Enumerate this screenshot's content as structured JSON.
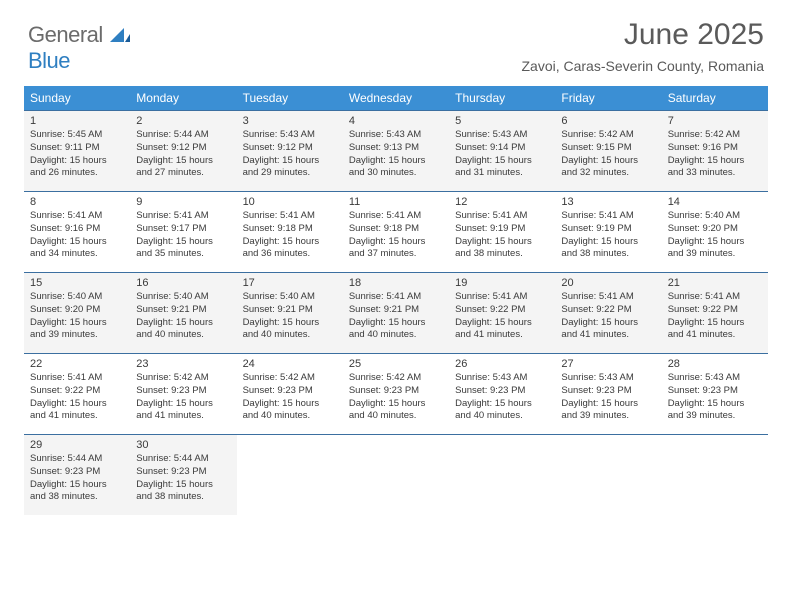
{
  "logo": {
    "text1": "General",
    "text2": "Blue"
  },
  "header": {
    "month_title": "June 2025",
    "location": "Zavoi, Caras-Severin County, Romania"
  },
  "colors": {
    "header_bg": "#3b8fd4",
    "header_fg": "#ffffff",
    "week_border": "#3b6fa0",
    "alt_row_bg": "#f4f4f4",
    "text": "#3a3a3a",
    "title": "#5a5a5a",
    "logo_gray": "#6b6b6b",
    "logo_blue": "#2f7fc1"
  },
  "weekdays": [
    "Sunday",
    "Monday",
    "Tuesday",
    "Wednesday",
    "Thursday",
    "Friday",
    "Saturday"
  ],
  "weeks": [
    {
      "alt": true,
      "days": [
        {
          "n": "1",
          "sr": "Sunrise: 5:45 AM",
          "ss": "Sunset: 9:11 PM",
          "d1": "Daylight: 15 hours",
          "d2": "and 26 minutes."
        },
        {
          "n": "2",
          "sr": "Sunrise: 5:44 AM",
          "ss": "Sunset: 9:12 PM",
          "d1": "Daylight: 15 hours",
          "d2": "and 27 minutes."
        },
        {
          "n": "3",
          "sr": "Sunrise: 5:43 AM",
          "ss": "Sunset: 9:12 PM",
          "d1": "Daylight: 15 hours",
          "d2": "and 29 minutes."
        },
        {
          "n": "4",
          "sr": "Sunrise: 5:43 AM",
          "ss": "Sunset: 9:13 PM",
          "d1": "Daylight: 15 hours",
          "d2": "and 30 minutes."
        },
        {
          "n": "5",
          "sr": "Sunrise: 5:43 AM",
          "ss": "Sunset: 9:14 PM",
          "d1": "Daylight: 15 hours",
          "d2": "and 31 minutes."
        },
        {
          "n": "6",
          "sr": "Sunrise: 5:42 AM",
          "ss": "Sunset: 9:15 PM",
          "d1": "Daylight: 15 hours",
          "d2": "and 32 minutes."
        },
        {
          "n": "7",
          "sr": "Sunrise: 5:42 AM",
          "ss": "Sunset: 9:16 PM",
          "d1": "Daylight: 15 hours",
          "d2": "and 33 minutes."
        }
      ]
    },
    {
      "alt": false,
      "days": [
        {
          "n": "8",
          "sr": "Sunrise: 5:41 AM",
          "ss": "Sunset: 9:16 PM",
          "d1": "Daylight: 15 hours",
          "d2": "and 34 minutes."
        },
        {
          "n": "9",
          "sr": "Sunrise: 5:41 AM",
          "ss": "Sunset: 9:17 PM",
          "d1": "Daylight: 15 hours",
          "d2": "and 35 minutes."
        },
        {
          "n": "10",
          "sr": "Sunrise: 5:41 AM",
          "ss": "Sunset: 9:18 PM",
          "d1": "Daylight: 15 hours",
          "d2": "and 36 minutes."
        },
        {
          "n": "11",
          "sr": "Sunrise: 5:41 AM",
          "ss": "Sunset: 9:18 PM",
          "d1": "Daylight: 15 hours",
          "d2": "and 37 minutes."
        },
        {
          "n": "12",
          "sr": "Sunrise: 5:41 AM",
          "ss": "Sunset: 9:19 PM",
          "d1": "Daylight: 15 hours",
          "d2": "and 38 minutes."
        },
        {
          "n": "13",
          "sr": "Sunrise: 5:41 AM",
          "ss": "Sunset: 9:19 PM",
          "d1": "Daylight: 15 hours",
          "d2": "and 38 minutes."
        },
        {
          "n": "14",
          "sr": "Sunrise: 5:40 AM",
          "ss": "Sunset: 9:20 PM",
          "d1": "Daylight: 15 hours",
          "d2": "and 39 minutes."
        }
      ]
    },
    {
      "alt": true,
      "days": [
        {
          "n": "15",
          "sr": "Sunrise: 5:40 AM",
          "ss": "Sunset: 9:20 PM",
          "d1": "Daylight: 15 hours",
          "d2": "and 39 minutes."
        },
        {
          "n": "16",
          "sr": "Sunrise: 5:40 AM",
          "ss": "Sunset: 9:21 PM",
          "d1": "Daylight: 15 hours",
          "d2": "and 40 minutes."
        },
        {
          "n": "17",
          "sr": "Sunrise: 5:40 AM",
          "ss": "Sunset: 9:21 PM",
          "d1": "Daylight: 15 hours",
          "d2": "and 40 minutes."
        },
        {
          "n": "18",
          "sr": "Sunrise: 5:41 AM",
          "ss": "Sunset: 9:21 PM",
          "d1": "Daylight: 15 hours",
          "d2": "and 40 minutes."
        },
        {
          "n": "19",
          "sr": "Sunrise: 5:41 AM",
          "ss": "Sunset: 9:22 PM",
          "d1": "Daylight: 15 hours",
          "d2": "and 41 minutes."
        },
        {
          "n": "20",
          "sr": "Sunrise: 5:41 AM",
          "ss": "Sunset: 9:22 PM",
          "d1": "Daylight: 15 hours",
          "d2": "and 41 minutes."
        },
        {
          "n": "21",
          "sr": "Sunrise: 5:41 AM",
          "ss": "Sunset: 9:22 PM",
          "d1": "Daylight: 15 hours",
          "d2": "and 41 minutes."
        }
      ]
    },
    {
      "alt": false,
      "days": [
        {
          "n": "22",
          "sr": "Sunrise: 5:41 AM",
          "ss": "Sunset: 9:22 PM",
          "d1": "Daylight: 15 hours",
          "d2": "and 41 minutes."
        },
        {
          "n": "23",
          "sr": "Sunrise: 5:42 AM",
          "ss": "Sunset: 9:23 PM",
          "d1": "Daylight: 15 hours",
          "d2": "and 41 minutes."
        },
        {
          "n": "24",
          "sr": "Sunrise: 5:42 AM",
          "ss": "Sunset: 9:23 PM",
          "d1": "Daylight: 15 hours",
          "d2": "and 40 minutes."
        },
        {
          "n": "25",
          "sr": "Sunrise: 5:42 AM",
          "ss": "Sunset: 9:23 PM",
          "d1": "Daylight: 15 hours",
          "d2": "and 40 minutes."
        },
        {
          "n": "26",
          "sr": "Sunrise: 5:43 AM",
          "ss": "Sunset: 9:23 PM",
          "d1": "Daylight: 15 hours",
          "d2": "and 40 minutes."
        },
        {
          "n": "27",
          "sr": "Sunrise: 5:43 AM",
          "ss": "Sunset: 9:23 PM",
          "d1": "Daylight: 15 hours",
          "d2": "and 39 minutes."
        },
        {
          "n": "28",
          "sr": "Sunrise: 5:43 AM",
          "ss": "Sunset: 9:23 PM",
          "d1": "Daylight: 15 hours",
          "d2": "and 39 minutes."
        }
      ]
    },
    {
      "alt": true,
      "days": [
        {
          "n": "29",
          "sr": "Sunrise: 5:44 AM",
          "ss": "Sunset: 9:23 PM",
          "d1": "Daylight: 15 hours",
          "d2": "and 38 minutes."
        },
        {
          "n": "30",
          "sr": "Sunrise: 5:44 AM",
          "ss": "Sunset: 9:23 PM",
          "d1": "Daylight: 15 hours",
          "d2": "and 38 minutes."
        },
        {
          "empty": true
        },
        {
          "empty": true
        },
        {
          "empty": true
        },
        {
          "empty": true
        },
        {
          "empty": true
        }
      ]
    }
  ]
}
